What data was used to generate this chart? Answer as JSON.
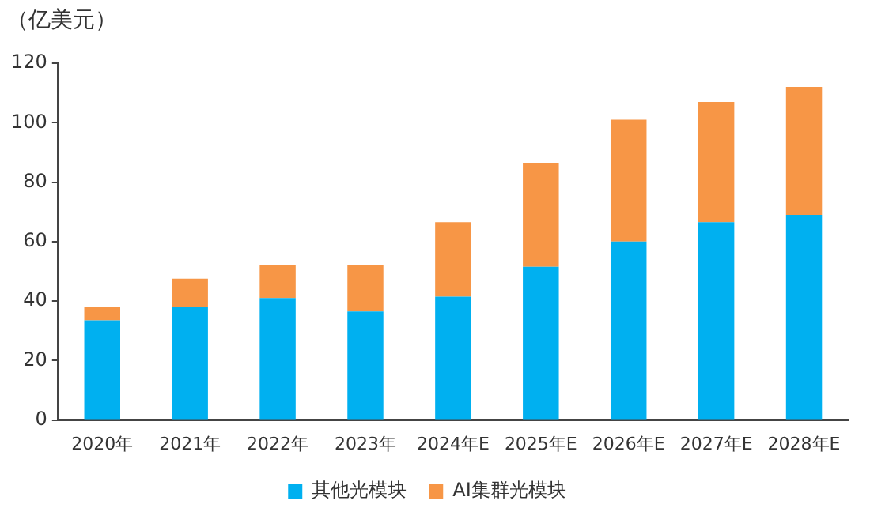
{
  "chart_data": {
    "type": "bar",
    "stacked": true,
    "ylabel": "（亿美元）",
    "categories": [
      "2020年",
      "2021年",
      "2022年",
      "2023年",
      "2024年E",
      "2025年E",
      "2026年E",
      "2027年E",
      "2028年E"
    ],
    "series": [
      {
        "name": "其他光模块",
        "color": "#00b0f0",
        "values": [
          33.5,
          38,
          41,
          36.5,
          41.5,
          51.5,
          60,
          66.5,
          69
        ]
      },
      {
        "name": "AI集群光模块",
        "color": "#f79646",
        "values": [
          4.5,
          9.5,
          11,
          15.5,
          25,
          35,
          41,
          40.5,
          43
        ]
      }
    ],
    "ylim": [
      0,
      120
    ],
    "yticks": [
      0,
      20,
      40,
      60,
      80,
      100,
      120
    ],
    "grid": false,
    "legend": "bottom"
  }
}
